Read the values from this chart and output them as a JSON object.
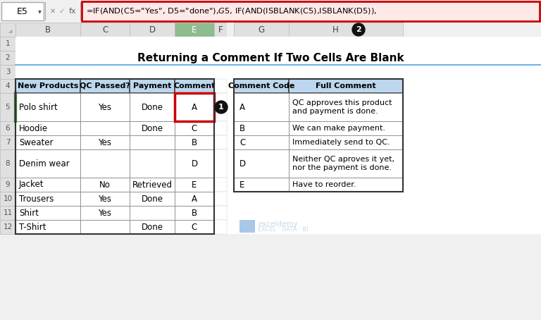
{
  "title": "Returning a Comment If Two Cells Are Blank",
  "formula_bar_text": "=IF(AND(C5=\"Yes\", D5=\"done\"),$G$5, IF(AND(ISBLANK(C5),ISBLANK(D5)),",
  "cell_ref": "E5",
  "header_bg": "#BDD7EE",
  "left_table_headers": [
    "New Products",
    "QC Passed?",
    "Payment",
    "Comment"
  ],
  "left_table_rows": [
    [
      "Polo shirt",
      "Yes",
      "Done",
      "A"
    ],
    [
      "Hoodie",
      "",
      "Done",
      "C"
    ],
    [
      "Sweater",
      "Yes",
      "",
      "B"
    ],
    [
      "Denim wear",
      "",
      "",
      "D"
    ],
    [
      "Jacket",
      "No",
      "Retrieved",
      "E"
    ],
    [
      "Trousers",
      "Yes",
      "Done",
      "A"
    ],
    [
      "Shirt",
      "Yes",
      "",
      "B"
    ],
    [
      "T-Shirt",
      "",
      "Done",
      "C"
    ]
  ],
  "row_numbers_data": [
    "5",
    "6",
    "7",
    "8",
    "9",
    "10",
    "11",
    "12"
  ],
  "row_heights_data": [
    2,
    1,
    1,
    2,
    1,
    1,
    1,
    1
  ],
  "right_table_headers": [
    "Comment Code",
    "Full Comment"
  ],
  "right_table_rows": [
    [
      "A",
      "QC approves this product\nand payment is done."
    ],
    [
      "B",
      "We can make payment."
    ],
    [
      "C",
      "Immediately send to QC."
    ],
    [
      "D",
      "Neither QC aproves it yet,\nnor the payment is done."
    ],
    [
      "E",
      "Have to reorder."
    ]
  ],
  "right_row_heights": [
    2,
    1,
    1,
    2,
    1
  ],
  "bg_color": "#F0F0F0",
  "sheet_bg": "#FFFFFF",
  "col_header_bg": "#E0E0E0",
  "col_header_selected_bg": "#8FBC8F",
  "formula_bar_bg": "#FFE8E8",
  "formula_bar_border": "#CC0000",
  "green_left_border": "#3A7D3A",
  "red_cell_border": "#CC0000",
  "annotation_bg": "#222222",
  "annotation_text": "#FFFFFF",
  "grid_color": "#BBBBBB",
  "table_border_color": "#444444",
  "blue_line_color": "#6EB5E8",
  "watermark_text": "exceldemy\nEXCEL · DATA · BI",
  "watermark_color": "#C8D8E8"
}
